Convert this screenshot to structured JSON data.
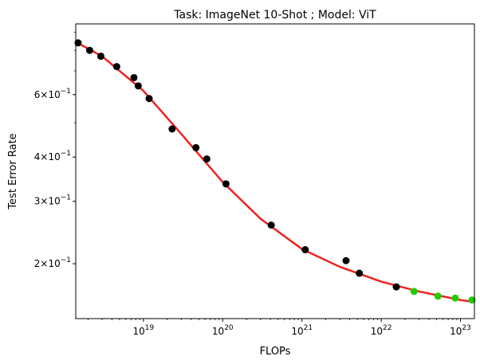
{
  "chart_data": {
    "type": "scatter",
    "title": "Task: ImageNet 10-Shot ; Model: ViT",
    "xlabel": "FLOPs",
    "ylabel": "Test Error Rate",
    "xscale": "log",
    "yscale": "log",
    "xlim": [
      1.4e+18,
      1.5e+23
    ],
    "ylim": [
      0.14,
      0.95
    ],
    "xticks": [
      {
        "value": 1e+19,
        "base": "10",
        "exp": "19"
      },
      {
        "value": 1e+20,
        "base": "10",
        "exp": "20"
      },
      {
        "value": 1e+21,
        "base": "10",
        "exp": "21"
      },
      {
        "value": 1e+22,
        "base": "10",
        "exp": "22"
      },
      {
        "value": 1e+23,
        "base": "10",
        "exp": "23"
      }
    ],
    "yticks": [
      {
        "value": 0.2,
        "mant": "2",
        "base": "10",
        "exp": "−1"
      },
      {
        "value": 0.3,
        "mant": "3",
        "base": "10",
        "exp": "−1"
      },
      {
        "value": 0.4,
        "mant": "4",
        "base": "10",
        "exp": "−1"
      },
      {
        "value": 0.6,
        "mant": "6",
        "base": "10",
        "exp": "−1"
      }
    ],
    "grid": false,
    "series": [
      {
        "color": "#000000",
        "points": [
          [
            1.5e+18,
            0.84
          ],
          [
            2.1e+18,
            0.8
          ],
          [
            2.9e+18,
            0.77
          ],
          [
            4.6e+18,
            0.72
          ],
          [
            7.6e+18,
            0.67
          ],
          [
            8.6e+18,
            0.635
          ],
          [
            1.18e+19,
            0.585
          ],
          [
            2.3e+19,
            0.48
          ],
          [
            4.6e+19,
            0.425
          ],
          [
            6.3e+19,
            0.395
          ],
          [
            1.1e+20,
            0.336
          ],
          [
            4.1e+20,
            0.257
          ],
          [
            1.1e+21,
            0.219
          ],
          [
            3.6e+21,
            0.204
          ],
          [
            5.3e+21,
            0.188
          ],
          [
            1.55e+22,
            0.172
          ]
        ]
      },
      {
        "color": "#22cc00",
        "points": [
          [
            2.6e+22,
            0.167
          ],
          [
            5.2e+22,
            0.162
          ],
          [
            8.6e+22,
            0.16
          ],
          [
            1.4e+23,
            0.158
          ]
        ]
      }
    ],
    "fit_curve": {
      "color": "#ee2222",
      "points": [
        [
          1.4e+18,
          0.845
        ],
        [
          3e+18,
          0.77
        ],
        [
          1e+19,
          0.615
        ],
        [
          3e+19,
          0.465
        ],
        [
          1e+20,
          0.34
        ],
        [
          3e+20,
          0.268
        ],
        [
          1e+21,
          0.22
        ],
        [
          3e+21,
          0.196
        ],
        [
          1e+22,
          0.178
        ],
        [
          3e+22,
          0.167
        ],
        [
          1e+23,
          0.158
        ],
        [
          1.5e+23,
          0.156
        ]
      ]
    }
  }
}
